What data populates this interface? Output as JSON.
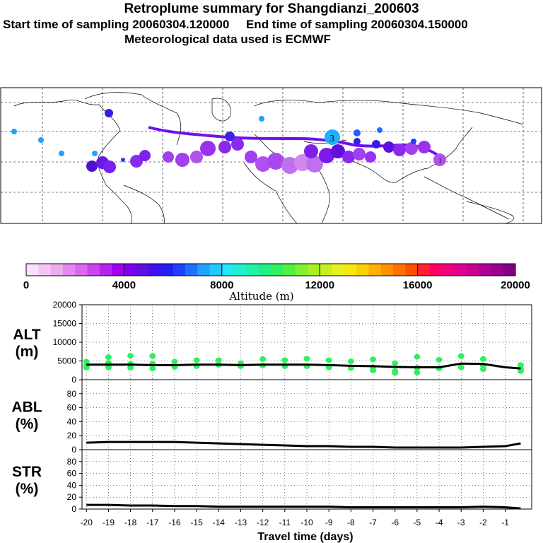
{
  "header": {
    "title": "Retroplume summary for Shangdianzi_200603",
    "start_label": "Start time of sampling 20060304.120000",
    "end_label": "End time of sampling 20060304.150000",
    "met_label": "Meteorological data used is ECMWF"
  },
  "colorbar": {
    "xlabel": "Altitude (m)",
    "ticks": [
      "0",
      "4000",
      "8000",
      "12000",
      "16000",
      "20000"
    ],
    "range": [
      0,
      20000
    ],
    "colors": [
      "#fbe0fb",
      "#f4c4f4",
      "#eeaaee",
      "#e688ee",
      "#dd66ee",
      "#cc44ee",
      "#b822ee",
      "#a000ee",
      "#8000ee",
      "#6010dd",
      "#4010ee",
      "#2020f0",
      "#2040ff",
      "#2070ff",
      "#20a0ff",
      "#20c8ff",
      "#20e8f4",
      "#20f0d0",
      "#20f0a8",
      "#20f080",
      "#30f060",
      "#50f040",
      "#80f030",
      "#a8f020",
      "#c8f020",
      "#e8f020",
      "#f8e810",
      "#ffd000",
      "#ffb000",
      "#ff9000",
      "#ff7000",
      "#ff5000",
      "#ff2030",
      "#ff0060",
      "#f00080",
      "#e00090",
      "#c80090",
      "#b00090",
      "#980090",
      "#800080"
    ]
  },
  "chart_data": [
    {
      "type": "scatter",
      "name": "ALT",
      "ylabel_line1": "ALT",
      "ylabel_line2": "(m)",
      "yticks": [
        "20000",
        "15000",
        "10000",
        "5000",
        "0"
      ],
      "ylim": [
        0,
        20000
      ],
      "xlim": [
        -20.2,
        0.2
      ],
      "line_x": [
        -20,
        -19,
        -18,
        -17,
        -16,
        -15,
        -14,
        -13,
        -12,
        -11,
        -10,
        -9,
        -8,
        -7,
        -6,
        -5,
        -4,
        -3,
        -2,
        -1,
        -0.3
      ],
      "line_y": [
        4000,
        4000,
        4000,
        3900,
        3900,
        4000,
        4000,
        3900,
        4000,
        4000,
        4000,
        3900,
        3700,
        3600,
        3400,
        3300,
        3300,
        4300,
        4200,
        3300,
        3000
      ],
      "points": [
        {
          "x": -20,
          "y": 4800
        },
        {
          "x": -20,
          "y": 3800
        },
        {
          "x": -20,
          "y": 3200
        },
        {
          "x": -19,
          "y": 6000
        },
        {
          "x": -19,
          "y": 4500
        },
        {
          "x": -19,
          "y": 3300
        },
        {
          "x": -18,
          "y": 6400
        },
        {
          "x": -18,
          "y": 4200
        },
        {
          "x": -18,
          "y": 3200
        },
        {
          "x": -17,
          "y": 6300
        },
        {
          "x": -17,
          "y": 4300
        },
        {
          "x": -17,
          "y": 3000
        },
        {
          "x": -16,
          "y": 4800
        },
        {
          "x": -16,
          "y": 3400
        },
        {
          "x": -15,
          "y": 5200
        },
        {
          "x": -15,
          "y": 3600
        },
        {
          "x": -14,
          "y": 5200
        },
        {
          "x": -14,
          "y": 4000
        },
        {
          "x": -13,
          "y": 4400
        },
        {
          "x": -13,
          "y": 3600
        },
        {
          "x": -12,
          "y": 5500
        },
        {
          "x": -12,
          "y": 3800
        },
        {
          "x": -11,
          "y": 5200
        },
        {
          "x": -11,
          "y": 3600
        },
        {
          "x": -10,
          "y": 5600
        },
        {
          "x": -10,
          "y": 3600
        },
        {
          "x": -9,
          "y": 5200
        },
        {
          "x": -9,
          "y": 3300
        },
        {
          "x": -8,
          "y": 4900
        },
        {
          "x": -8,
          "y": 3100
        },
        {
          "x": -7,
          "y": 5400
        },
        {
          "x": -7,
          "y": 3300
        },
        {
          "x": -7,
          "y": 2500
        },
        {
          "x": -6,
          "y": 4400
        },
        {
          "x": -6,
          "y": 2300
        },
        {
          "x": -6,
          "y": 1800
        },
        {
          "x": -5,
          "y": 6100
        },
        {
          "x": -5,
          "y": 3200
        },
        {
          "x": -5,
          "y": 1900
        },
        {
          "x": -4,
          "y": 5300
        },
        {
          "x": -4,
          "y": 3000
        },
        {
          "x": -3,
          "y": 6300
        },
        {
          "x": -3,
          "y": 3300
        },
        {
          "x": -2,
          "y": 5500
        },
        {
          "x": -2,
          "y": 3800
        },
        {
          "x": -2,
          "y": 2800
        },
        {
          "x": -0.3,
          "y": 3900
        },
        {
          "x": -0.3,
          "y": 2900
        },
        {
          "x": -0.3,
          "y": 2300
        }
      ]
    },
    {
      "type": "line",
      "name": "ABL",
      "ylabel_line1": "ABL",
      "ylabel_line2": "(%)",
      "yticks": [
        "80",
        "60",
        "40",
        "20",
        "0"
      ],
      "ylim": [
        0,
        100
      ],
      "xlim": [
        -20.2,
        0.2
      ],
      "x": [
        -20,
        -19,
        -18,
        -17,
        -16,
        -15,
        -14,
        -13,
        -12,
        -11,
        -10,
        -9,
        -8,
        -7,
        -6,
        -5,
        -4,
        -3,
        -2,
        -1,
        -0.3
      ],
      "y": [
        10,
        11,
        11,
        11,
        11,
        10,
        9,
        8,
        7,
        6,
        5,
        5,
        4,
        4,
        3,
        3,
        3,
        3,
        4,
        5,
        9
      ]
    },
    {
      "type": "line",
      "name": "STR",
      "ylabel_line1": "STR",
      "ylabel_line2": "(%)",
      "yticks": [
        "80",
        "60",
        "40",
        "20",
        "0"
      ],
      "ylim": [
        0,
        100
      ],
      "xlim": [
        -20.2,
        0.2
      ],
      "x": [
        -20,
        -19,
        -18,
        -17,
        -16,
        -15,
        -14,
        -13,
        -12,
        -11,
        -10,
        -9,
        -8,
        -7,
        -6,
        -5,
        -4,
        -3,
        -2,
        -1,
        -0.3
      ],
      "y": [
        7,
        7,
        6,
        6,
        5,
        5,
        4,
        4,
        4,
        4,
        4,
        4,
        3,
        3,
        3,
        3,
        3,
        3,
        4,
        3,
        1
      ],
      "xlabel": "Travel time (days)",
      "xticks": [
        "-20",
        "-19",
        "-18",
        "-17",
        "-16",
        "-15",
        "-14",
        "-13",
        "-12",
        "-11",
        "-10",
        "-9",
        "-8",
        "-7",
        "-6",
        "-5",
        "-4",
        "-3",
        "-2",
        "-1"
      ]
    }
  ],
  "map": {
    "labels": [
      "3",
      "1"
    ]
  }
}
